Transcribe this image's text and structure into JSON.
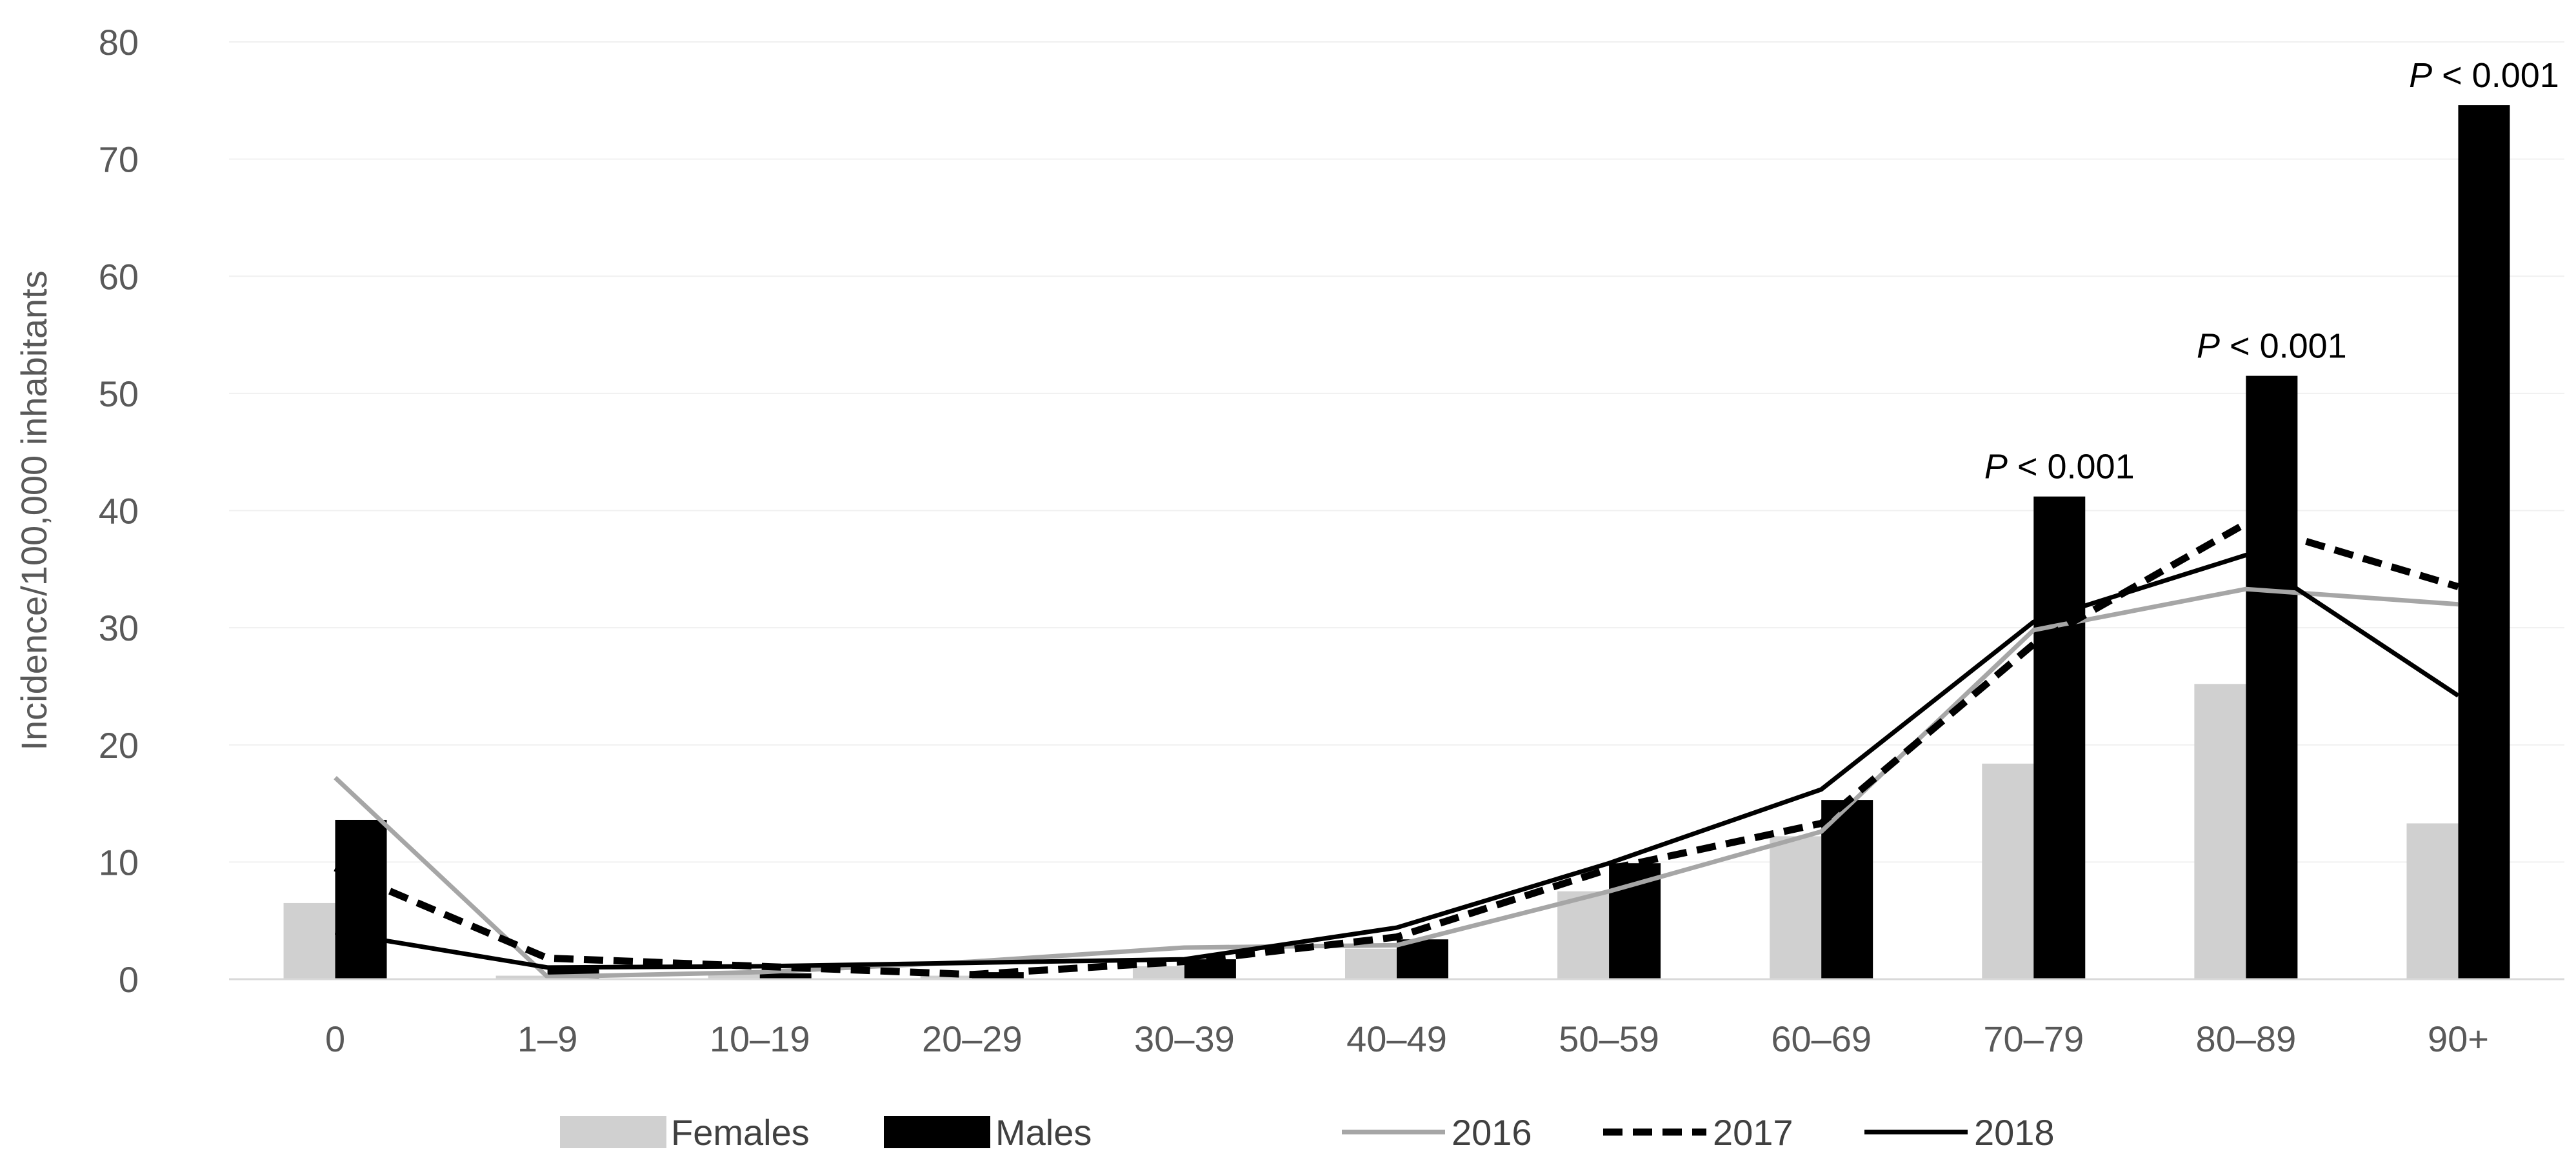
{
  "chart_data": {
    "type": "bar",
    "categories": [
      "0",
      "1–9",
      "10–19",
      "20–29",
      "30–39",
      "40–49",
      "50–59",
      "60–69",
      "70–79",
      "80–89",
      "90+"
    ],
    "ylabel": "Incidence/100,000 inhabitants",
    "xlabel": "",
    "ylim": [
      0,
      80
    ],
    "yticks": [
      "0",
      "10",
      "20",
      "30",
      "40",
      "50",
      "60",
      "70",
      "80"
    ],
    "grid": true,
    "legend_position": "bottom",
    "bar_series": [
      {
        "name": "Females",
        "color": "#d0d0d0",
        "values": [
          6.5,
          0.3,
          0.4,
          0.3,
          1.1,
          2.6,
          7.5,
          12.2,
          18.4,
          25.2,
          13.3
        ]
      },
      {
        "name": "Males",
        "color": "#000000",
        "values": [
          13.6,
          1.0,
          0.5,
          0.6,
          1.7,
          3.4,
          9.9,
          15.3,
          41.2,
          51.5,
          74.6
        ]
      }
    ],
    "line_series": [
      {
        "name": "2016",
        "color": "#a6a6a6",
        "style": "solid",
        "values": [
          17.2,
          0.2,
          0.6,
          1.5,
          2.7,
          2.9,
          7.5,
          12.6,
          29.8,
          33.3,
          32.0
        ]
      },
      {
        "name": "2017",
        "color": "#000000",
        "style": "dashed",
        "values": [
          9.5,
          1.8,
          1.1,
          0.4,
          1.5,
          3.6,
          9.4,
          13.3,
          28.6,
          38.9,
          33.5
        ]
      },
      {
        "name": "2018",
        "color": "#000000",
        "style": "solid",
        "values": [
          4.0,
          1.0,
          1.1,
          1.4,
          1.7,
          4.4,
          9.9,
          16.2,
          30.5,
          36.2,
          24.2
        ]
      }
    ],
    "annotations": [
      {
        "category": "70–79",
        "value": 41.2,
        "italic": "P",
        "text": " < 0.001"
      },
      {
        "category": "80–89",
        "value": 51.5,
        "italic": "P",
        "text": " < 0.001"
      },
      {
        "category": "90+",
        "value": 74.6,
        "italic": "P",
        "text": " < 0.001"
      }
    ]
  }
}
